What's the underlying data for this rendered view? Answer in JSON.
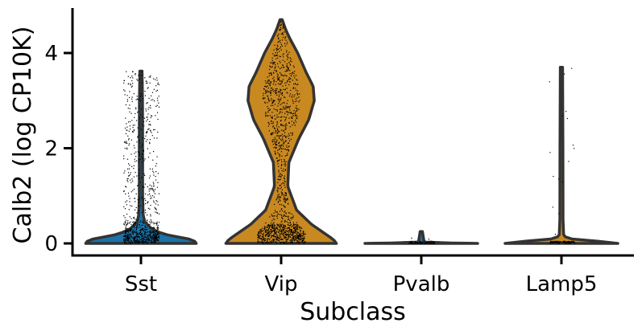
{
  "chart_data": {
    "type": "violin",
    "title": "",
    "xlabel": "Subclass",
    "ylabel": "Calb2 (log CP10K)",
    "categories": [
      "Sst",
      "Vip",
      "Pvalb",
      "Lamp5"
    ],
    "colors": [
      "#1a74ab",
      "#c98921"
    ],
    "series_colors": {
      "Sst": "#1a74ab",
      "Vip": "#c98921",
      "Pvalb": "#1a74ab",
      "Lamp5": "#c98921"
    },
    "ylim": [
      -0.25,
      4.95
    ],
    "yticks": [
      0,
      2,
      4
    ],
    "violins": [
      {
        "name": "Sst",
        "max": 3.62,
        "profile": [
          [
            0,
            1.0
          ],
          [
            0.05,
            0.97
          ],
          [
            0.1,
            0.85
          ],
          [
            0.15,
            0.6
          ],
          [
            0.2,
            0.4
          ],
          [
            0.3,
            0.2
          ],
          [
            0.45,
            0.07
          ],
          [
            0.6,
            0.04
          ],
          [
            1.0,
            0.03
          ],
          [
            2.0,
            0.03
          ],
          [
            3.0,
            0.028
          ],
          [
            3.62,
            0.02
          ]
        ],
        "half_width_max": 0.98
      },
      {
        "name": "Vip",
        "max": 4.7,
        "profile": [
          [
            0,
            1.0
          ],
          [
            0.08,
            0.95
          ],
          [
            0.2,
            0.8
          ],
          [
            0.4,
            0.55
          ],
          [
            0.7,
            0.28
          ],
          [
            1.2,
            0.12
          ],
          [
            1.7,
            0.14
          ],
          [
            2.2,
            0.32
          ],
          [
            2.6,
            0.5
          ],
          [
            3.0,
            0.6
          ],
          [
            3.3,
            0.58
          ],
          [
            3.6,
            0.45
          ],
          [
            4.0,
            0.3
          ],
          [
            4.3,
            0.16
          ],
          [
            4.5,
            0.08
          ],
          [
            4.7,
            0.02
          ]
        ],
        "half_width_max": 0.98
      },
      {
        "name": "Pvalb",
        "max": 0.25,
        "profile": [
          [
            0,
            1.0
          ],
          [
            0.01,
            0.5
          ],
          [
            0.03,
            0.05
          ],
          [
            0.25,
            0.02
          ]
        ],
        "half_width_max": 1.0
      },
      {
        "name": "Lamp5",
        "max": 3.7,
        "profile": [
          [
            0,
            1.0
          ],
          [
            0.02,
            0.92
          ],
          [
            0.05,
            0.6
          ],
          [
            0.08,
            0.22
          ],
          [
            0.15,
            0.04
          ],
          [
            0.5,
            0.028
          ],
          [
            2.0,
            0.026
          ],
          [
            3.7,
            0.02
          ]
        ],
        "half_width_max": 1.0
      }
    ]
  }
}
